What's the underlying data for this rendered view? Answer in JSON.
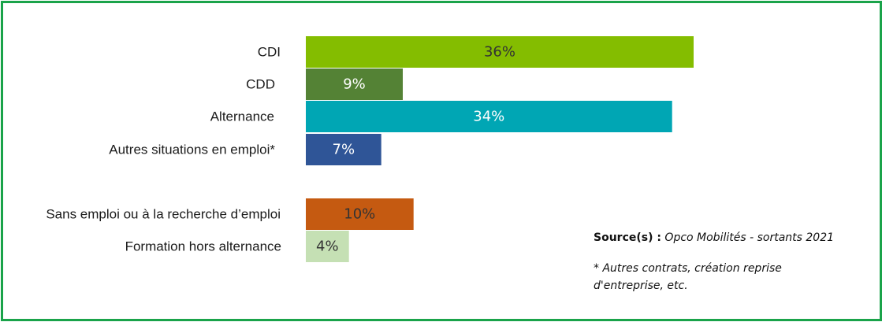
{
  "chart_data": {
    "type": "bar",
    "orientation": "horizontal",
    "categories": [
      "CDI",
      "CDD",
      "Alternance",
      "Autres situations en emploi*",
      "Sans emploi ou à la recherche d’emploi",
      "Formation hors alternance"
    ],
    "values": [
      36,
      9,
      34,
      7,
      10,
      4
    ],
    "value_labels": [
      "36%",
      "9%",
      "34%",
      "7%",
      "10%",
      "4%"
    ],
    "colors": [
      "#84bd00",
      "#548235",
      "#00a6b4",
      "#2f5597",
      "#c55a11",
      "#c5e0b4"
    ],
    "label_colors": [
      "#333333",
      "#ffffff",
      "#ffffff",
      "#ffffff",
      "#333333",
      "#333333"
    ],
    "groups": [
      [
        0,
        1,
        2,
        3
      ],
      [
        4,
        5
      ]
    ],
    "title": "",
    "xlabel": "",
    "ylabel": "",
    "xlim": [
      0,
      36
    ],
    "grid": false
  },
  "source": {
    "label": "Source(s) :",
    "text": "Opco Mobilités - sortants 2021"
  },
  "footnote": {
    "line1": "* Autres contrats, création reprise",
    "line2": "d'entreprise, etc."
  }
}
